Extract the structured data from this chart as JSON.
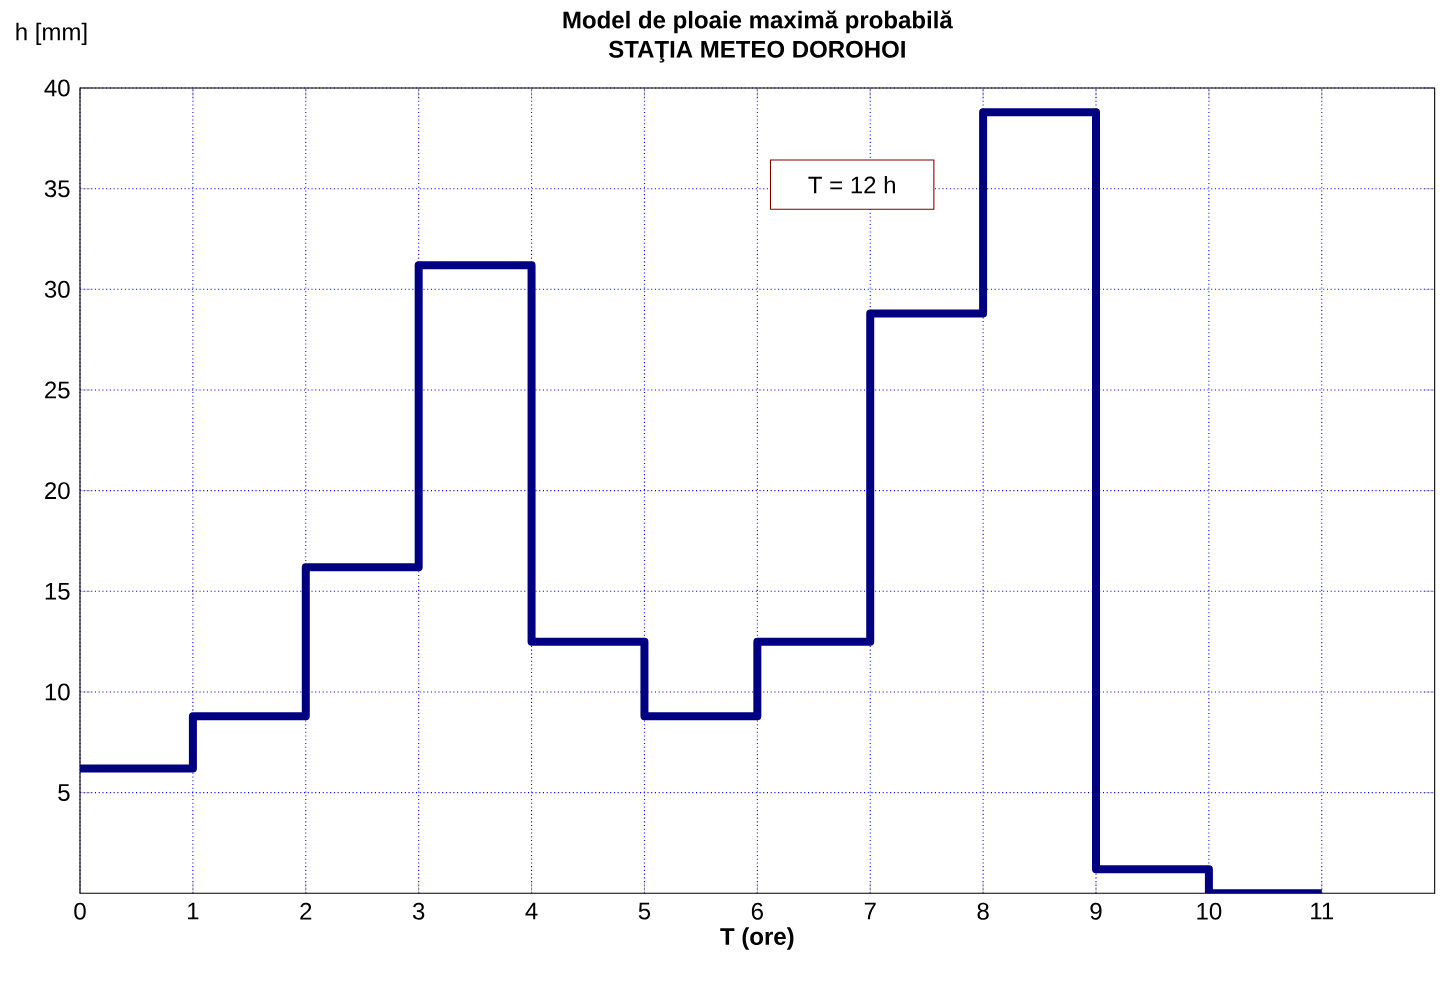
{
  "chart_data": {
    "type": "step",
    "title": "Model de ploaie maximă probabilă",
    "subtitle": "STAŢIA  METEO DOROHOI",
    "xlabel": "T (ore)",
    "ylabel": "h [mm]",
    "x": [
      0,
      1,
      2,
      3,
      4,
      5,
      6,
      7,
      8,
      9,
      10,
      11
    ],
    "series": [
      {
        "color": "#000080",
        "values": [
          6.2,
          8.8,
          16.2,
          31.2,
          12.5,
          8.8,
          12.5,
          28.8,
          38.8,
          1.2,
          0,
          0
        ]
      }
    ],
    "xlim": [
      0,
      12
    ],
    "xticks": [
      0,
      1,
      2,
      3,
      4,
      5,
      6,
      7,
      8,
      9,
      10,
      11
    ],
    "ylim": [
      0,
      40
    ],
    "yticks": [
      5,
      10,
      15,
      20,
      25,
      30,
      35,
      40
    ],
    "grid": true,
    "annotations": [
      "T  = 12 h"
    ]
  }
}
